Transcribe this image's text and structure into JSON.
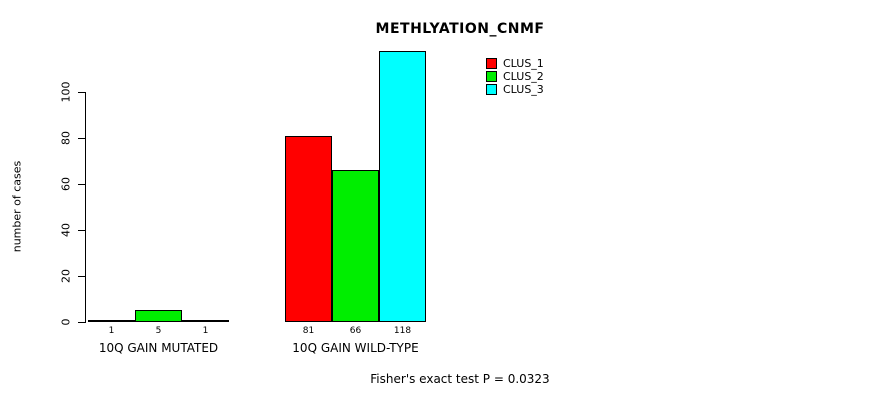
{
  "chart_data": {
    "type": "bar",
    "title": "METHLYATION_CNMF",
    "ylabel": "number of cases",
    "xlabel": "",
    "categories": [
      "10Q GAIN MUTATED",
      "10Q GAIN WILD-TYPE"
    ],
    "series": [
      {
        "name": "CLUS_1",
        "color": "#FF0000",
        "values": [
          1,
          81
        ]
      },
      {
        "name": "CLUS_2",
        "color": "#00EE00",
        "values": [
          5,
          66
        ]
      },
      {
        "name": "CLUS_3",
        "color": "#00FFFF",
        "values": [
          1,
          118
        ]
      }
    ],
    "bar_value_labels": [
      [
        "1",
        "5",
        "1"
      ],
      [
        "81",
        "66",
        "118"
      ]
    ],
    "yticks": [
      0,
      20,
      40,
      60,
      80,
      100
    ],
    "ylim": [
      0,
      118
    ],
    "grid": false,
    "legend_position": "top-right",
    "annotation": "Fisher's exact test P = 0.0323"
  }
}
